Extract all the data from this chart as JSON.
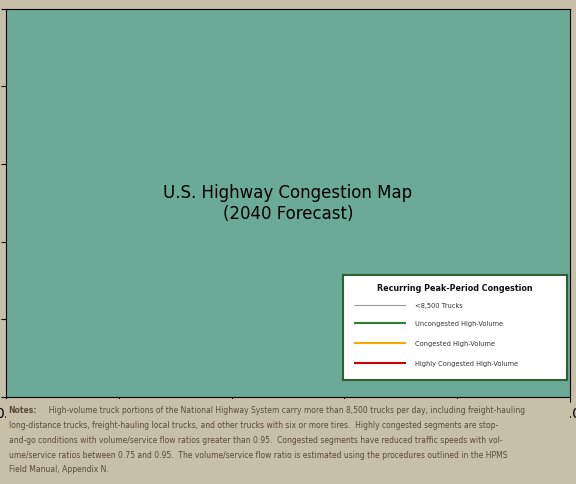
{
  "bg_color": "#c8bfa8",
  "ocean_color": "#6aaa96",
  "land_color": "#ffffff",
  "legend_title": "Recurring Peak-Period Congestion",
  "legend_items": [
    {
      "label": "<8,500 Trucks",
      "color": "#999999",
      "linewidth": 0.8
    },
    {
      "label": "Uncongested High-Volume",
      "color": "#2e7d32",
      "linewidth": 1.5
    },
    {
      "label": "Congested High-Volume",
      "color": "#f5a800",
      "linewidth": 1.5
    },
    {
      "label": "Highly Congested High-Volume",
      "color": "#cc0000",
      "linewidth": 1.5
    }
  ],
  "notes_color": "#5a4a3a",
  "legend_box_color": "#2e6030",
  "fig_width": 5.76,
  "fig_height": 4.85,
  "notes_lines": [
    {
      "bold": "Notes:",
      "normal": "  High-volume truck portions of the National Highway System carry more than 8,500 trucks per day, including freight-hauling"
    },
    {
      "bold": "",
      "normal": "long-distance trucks, freight-hauling local trucks, and other trucks with six or more tires.  Highly congested segments are stop-"
    },
    {
      "bold": "",
      "normal": "and-go conditions with volume/service flow ratios greater than 0.95.  Congested segments have reduced traffic speeds with vol-"
    },
    {
      "bold": "",
      "normal": "ume/service ratios between 0.75 and 0.95.  The volume/service flow ratio is estimated using the procedures outlined in the HPMS"
    },
    {
      "bold": "",
      "normal": "Field Manual, Appendix N."
    }
  ]
}
